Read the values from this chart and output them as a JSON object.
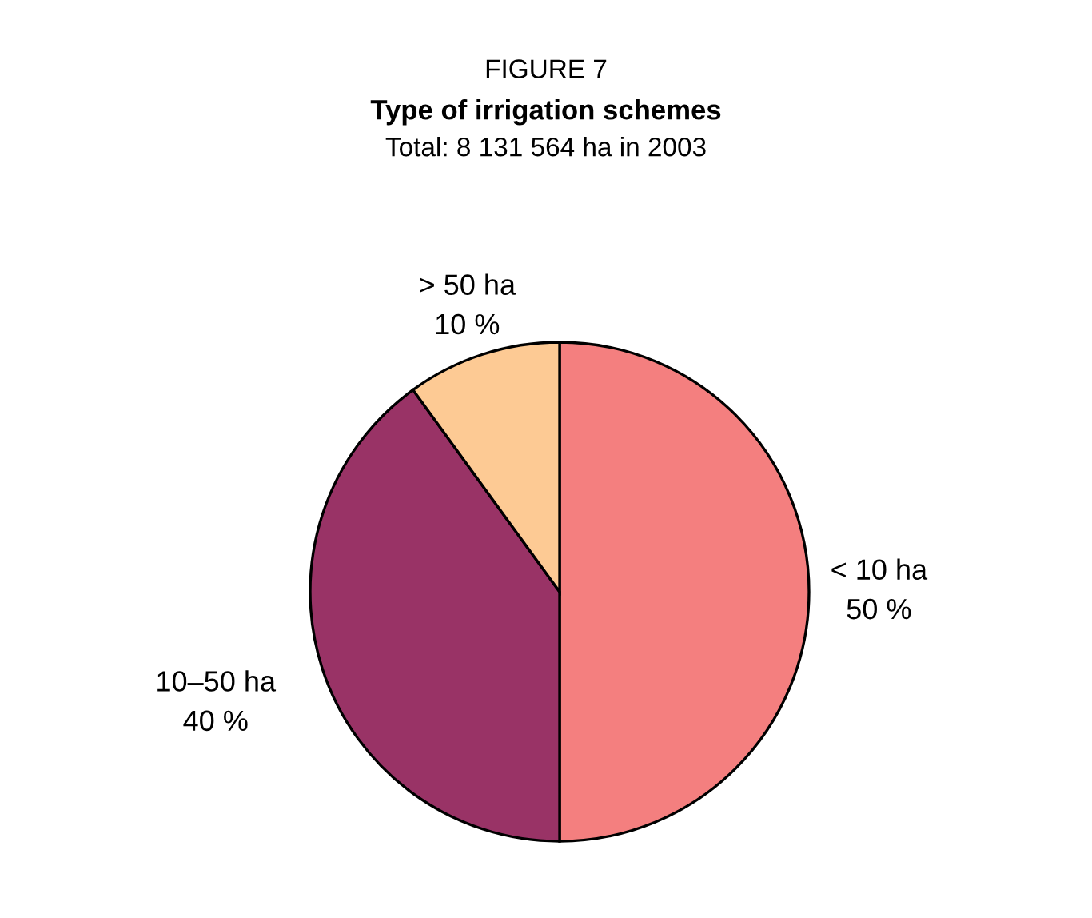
{
  "chart_data": {
    "type": "pie",
    "title": "Type of irrigation schemes",
    "subtitle": "Total: 8 131 564 ha in 2003",
    "annotations": [
      "FIGURE 7"
    ],
    "categories": [
      "< 10 ha",
      "10–50 ha",
      "> 50 ha"
    ],
    "values": [
      50,
      40,
      10
    ],
    "value_labels": [
      "50 %",
      "40 %",
      "10 %"
    ],
    "colors": [
      "#f47f7f",
      "#993366",
      "#fdca94"
    ]
  }
}
